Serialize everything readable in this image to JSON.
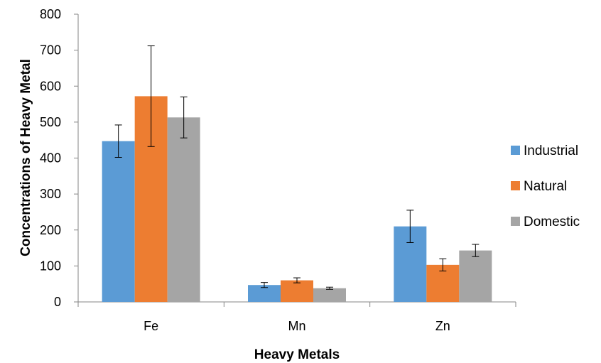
{
  "chart_data": {
    "type": "bar",
    "title": "",
    "xlabel": "Heavy Metals",
    "ylabel": "Concentrations of Heavy Metal",
    "categories": [
      "Fe",
      "Mn",
      "Zn"
    ],
    "ylim": [
      0,
      800
    ],
    "yticks": [
      0,
      100,
      200,
      300,
      400,
      500,
      600,
      700,
      800
    ],
    "grid": false,
    "legend_position": "right",
    "series": [
      {
        "name": "Industrial",
        "color": "#5B9BD5",
        "values": [
          447,
          47,
          210
        ],
        "errors": [
          45,
          7,
          45
        ]
      },
      {
        "name": "Natural",
        "color": "#ED7D31",
        "values": [
          572,
          60,
          103
        ],
        "errors": [
          140,
          7,
          17
        ]
      },
      {
        "name": "Domestic",
        "color": "#A5A5A5",
        "values": [
          513,
          38,
          143
        ],
        "errors": [
          57,
          3,
          17
        ]
      }
    ]
  }
}
